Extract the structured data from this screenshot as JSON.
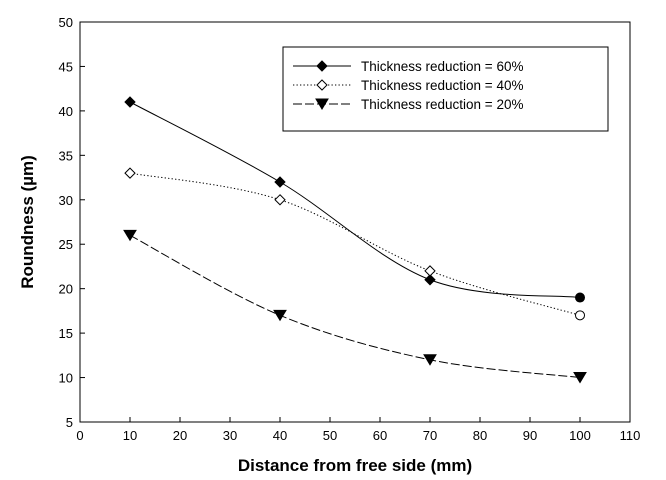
{
  "chart_data": {
    "type": "line",
    "title": "",
    "xlabel": "Distance from free side (mm)",
    "ylabel": "Roundness (µm)",
    "xlim": [
      0,
      110
    ],
    "ylim": [
      5,
      50
    ],
    "x_ticks": [
      0,
      10,
      20,
      30,
      40,
      50,
      60,
      70,
      80,
      90,
      100,
      110
    ],
    "y_ticks": [
      5,
      10,
      15,
      20,
      25,
      30,
      35,
      40,
      45,
      50
    ],
    "grid": false,
    "legend_position": "top-right",
    "x": [
      10,
      40,
      70,
      100
    ],
    "series": [
      {
        "name": "Thickness reduction = 60%",
        "values": [
          41,
          32,
          21,
          19
        ],
        "marker": "filled-diamond",
        "line": "solid",
        "color": "#000000"
      },
      {
        "name": "Thickness reduction = 40%",
        "values": [
          33,
          30,
          22,
          17
        ],
        "marker": "open-diamond",
        "line": "dotted",
        "color": "#000000"
      },
      {
        "name": "Thickness reduction = 20%",
        "values": [
          26,
          17,
          12,
          10
        ],
        "marker": "filled-down-triangle",
        "line": "dashed",
        "color": "#000000"
      }
    ]
  }
}
